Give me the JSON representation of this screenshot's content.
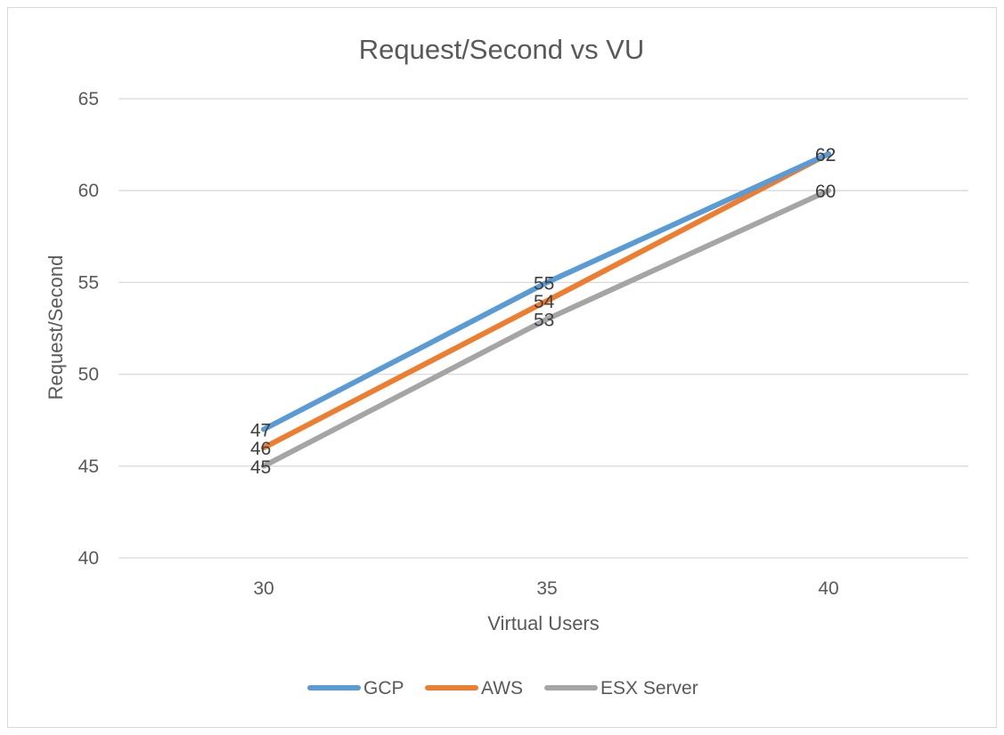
{
  "chart_data": {
    "type": "line",
    "title": "Request/Second  vs VU",
    "xlabel": "Virtual Users",
    "ylabel": "Request/Second",
    "categories": [
      "30",
      "35",
      "40"
    ],
    "ylim": [
      40,
      65
    ],
    "yticks": [
      "40",
      "45",
      "50",
      "55",
      "60",
      "65"
    ],
    "grid": true,
    "legend_position": "bottom",
    "series": [
      {
        "name": "GCP",
        "values": [
          47,
          55,
          62
        ],
        "color": "#5b9bd5"
      },
      {
        "name": "AWS",
        "values": [
          46,
          54,
          62
        ],
        "color": "#ed7d31"
      },
      {
        "name": "ESX Server",
        "values": [
          45,
          53,
          60
        ],
        "color": "#a5a5a5"
      }
    ]
  }
}
